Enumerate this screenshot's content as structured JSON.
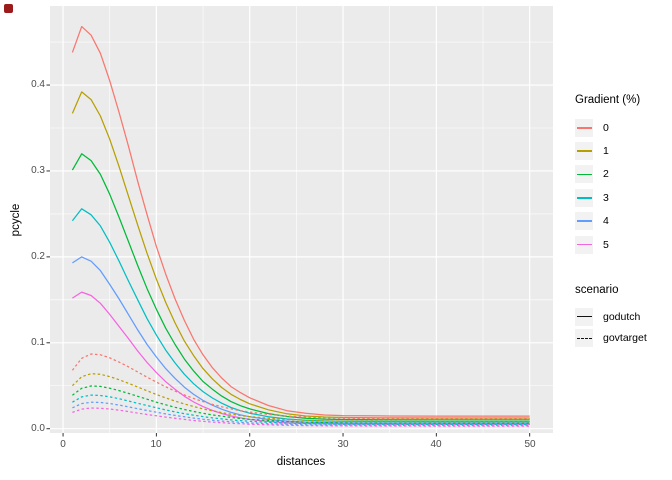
{
  "axis": {
    "x_title": "distances",
    "y_title": "pcycle",
    "x_tick_labels": [
      "0",
      "10",
      "20",
      "30",
      "40",
      "50"
    ],
    "y_tick_labels": [
      "0.0",
      "0.1",
      "0.2",
      "0.3",
      "0.4"
    ]
  },
  "legend": {
    "gradient": {
      "title": "Gradient (%)",
      "items": [
        {
          "label": "0",
          "color": "#F8766D"
        },
        {
          "label": "1",
          "color": "#B79F00"
        },
        {
          "label": "2",
          "color": "#00BA38"
        },
        {
          "label": "3",
          "color": "#00BFC4"
        },
        {
          "label": "4",
          "color": "#619CFF"
        },
        {
          "label": "5",
          "color": "#F564E2"
        }
      ]
    },
    "scenario": {
      "title": "scenario",
      "items": [
        {
          "label": "godutch",
          "linetype": "solid"
        },
        {
          "label": "govtarget",
          "linetype": "dashed"
        }
      ]
    }
  },
  "colors": {
    "panel_bg": "#EBEBEB",
    "gridline": "#FFFFFF",
    "tick_mark": "#333333",
    "tick_label": "#4D4D4D",
    "record_indicator": "#9B1B1B"
  },
  "chart_data": {
    "type": "line",
    "title": "",
    "xlabel": "distances",
    "ylabel": "pcycle",
    "xlim": [
      -1.4,
      52.5
    ],
    "ylim": [
      -0.005,
      0.492
    ],
    "x_ticks": [
      0,
      10,
      20,
      30,
      40,
      50
    ],
    "x_minor_ticks": [
      5,
      15,
      25,
      35,
      45
    ],
    "y_ticks": [
      0,
      0.1,
      0.2,
      0.3,
      0.4
    ],
    "y_minor_ticks": [
      0.05,
      0.15,
      0.25,
      0.35,
      0.45
    ],
    "legend_position": "right",
    "grid": true,
    "x": [
      1,
      2,
      3,
      4,
      5,
      6,
      7,
      8,
      9,
      10,
      11,
      12,
      13,
      14,
      15,
      16,
      17,
      18,
      19,
      20,
      22,
      24,
      26,
      28,
      30,
      35,
      40,
      45,
      50
    ],
    "series": [
      {
        "name": "godutch gradient 0",
        "scenario": "godutch",
        "gradient": "0",
        "color": "#F8766D",
        "linetype": "solid",
        "values": [
          0.438,
          0.468,
          0.458,
          0.437,
          0.405,
          0.368,
          0.329,
          0.288,
          0.249,
          0.212,
          0.18,
          0.151,
          0.126,
          0.104,
          0.086,
          0.071,
          0.059,
          0.049,
          0.042,
          0.036,
          0.027,
          0.021,
          0.018,
          0.016,
          0.0152,
          0.0148,
          0.0147,
          0.0147,
          0.0147
        ]
      },
      {
        "name": "godutch gradient 1",
        "scenario": "godutch",
        "gradient": "1",
        "color": "#B79F00",
        "linetype": "solid",
        "values": [
          0.367,
          0.392,
          0.383,
          0.364,
          0.337,
          0.305,
          0.271,
          0.237,
          0.204,
          0.174,
          0.147,
          0.123,
          0.102,
          0.085,
          0.07,
          0.058,
          0.048,
          0.04,
          0.034,
          0.029,
          0.022,
          0.0173,
          0.0148,
          0.0136,
          0.013,
          0.0126,
          0.0125,
          0.0125,
          0.0125
        ]
      },
      {
        "name": "godutch gradient 2",
        "scenario": "godutch",
        "gradient": "2",
        "color": "#00BA38",
        "linetype": "solid",
        "values": [
          0.301,
          0.32,
          0.312,
          0.296,
          0.273,
          0.246,
          0.218,
          0.19,
          0.163,
          0.139,
          0.117,
          0.098,
          0.081,
          0.067,
          0.055,
          0.046,
          0.038,
          0.0315,
          0.0268,
          0.023,
          0.0176,
          0.0142,
          0.0122,
          0.0112,
          0.0107,
          0.0104,
          0.0103,
          0.0103,
          0.0103
        ]
      },
      {
        "name": "godutch gradient 3",
        "scenario": "godutch",
        "gradient": "3",
        "color": "#00BFC4",
        "linetype": "solid",
        "values": [
          0.242,
          0.256,
          0.249,
          0.236,
          0.217,
          0.195,
          0.172,
          0.15,
          0.128,
          0.109,
          0.0915,
          0.0765,
          0.0633,
          0.0523,
          0.0432,
          0.0357,
          0.0297,
          0.0247,
          0.021,
          0.018,
          0.0139,
          0.0113,
          0.0098,
          0.009,
          0.0086,
          0.0084,
          0.0083,
          0.0083,
          0.0083
        ]
      },
      {
        "name": "godutch gradient 4",
        "scenario": "godutch",
        "gradient": "4",
        "color": "#619CFF",
        "linetype": "solid",
        "values": [
          0.193,
          0.2,
          0.195,
          0.184,
          0.168,
          0.151,
          0.133,
          0.115,
          0.098,
          0.0835,
          0.07,
          0.0585,
          0.0483,
          0.0399,
          0.033,
          0.0273,
          0.0227,
          0.019,
          0.0161,
          0.0138,
          0.0107,
          0.0088,
          0.0077,
          0.0071,
          0.0068,
          0.0066,
          0.0065,
          0.0065,
          0.0065
        ]
      },
      {
        "name": "godutch gradient 5",
        "scenario": "godutch",
        "gradient": "5",
        "color": "#F564E2",
        "linetype": "solid",
        "values": [
          0.152,
          0.159,
          0.155,
          0.146,
          0.133,
          0.119,
          0.105,
          0.0905,
          0.077,
          0.0653,
          0.0547,
          0.0457,
          0.0377,
          0.0311,
          0.0257,
          0.0213,
          0.0177,
          0.0148,
          0.0126,
          0.0108,
          0.0084,
          0.007,
          0.0062,
          0.0057,
          0.0055,
          0.0053,
          0.0052,
          0.0052,
          0.0052
        ]
      },
      {
        "name": "govtarget gradient 0",
        "scenario": "govtarget",
        "gradient": "0",
        "color": "#F8766D",
        "linetype": "dashed",
        "values": [
          0.068,
          0.082,
          0.087,
          0.086,
          0.0825,
          0.0775,
          0.072,
          0.066,
          0.06,
          0.0542,
          0.0488,
          0.0438,
          0.0393,
          0.0352,
          0.0315,
          0.0283,
          0.0255,
          0.0231,
          0.021,
          0.0193,
          0.0166,
          0.0147,
          0.0135,
          0.0127,
          0.0122,
          0.0116,
          0.0114,
          0.0114,
          0.0114
        ]
      },
      {
        "name": "govtarget gradient 1",
        "scenario": "govtarget",
        "gradient": "1",
        "color": "#B79F00",
        "linetype": "dashed",
        "values": [
          0.05,
          0.0605,
          0.064,
          0.0633,
          0.0607,
          0.057,
          0.0529,
          0.0485,
          0.0441,
          0.0398,
          0.0358,
          0.0321,
          0.0288,
          0.0258,
          0.0231,
          0.0207,
          0.0187,
          0.0169,
          0.0154,
          0.0141,
          0.0121,
          0.0107,
          0.0098,
          0.0092,
          0.0089,
          0.0085,
          0.0083,
          0.0083,
          0.0083
        ]
      },
      {
        "name": "govtarget gradient 2",
        "scenario": "govtarget",
        "gradient": "2",
        "color": "#00BA38",
        "linetype": "dashed",
        "values": [
          0.039,
          0.047,
          0.0497,
          0.0492,
          0.0472,
          0.0443,
          0.0411,
          0.0377,
          0.0343,
          0.0309,
          0.0278,
          0.0249,
          0.0223,
          0.02,
          0.0179,
          0.0161,
          0.0145,
          0.0131,
          0.0119,
          0.0109,
          0.0094,
          0.0083,
          0.0076,
          0.0071,
          0.0068,
          0.0065,
          0.0064,
          0.0064,
          0.0064
        ]
      },
      {
        "name": "govtarget gradient 3",
        "scenario": "govtarget",
        "gradient": "3",
        "color": "#00BFC4",
        "linetype": "dashed",
        "values": [
          0.0308,
          0.037,
          0.0391,
          0.0387,
          0.0371,
          0.0349,
          0.0323,
          0.0296,
          0.027,
          0.0243,
          0.0219,
          0.0196,
          0.0175,
          0.0157,
          0.0141,
          0.0126,
          0.0114,
          0.0103,
          0.0094,
          0.0086,
          0.0074,
          0.0065,
          0.0059,
          0.0056,
          0.0053,
          0.0051,
          0.005,
          0.005,
          0.005
        ]
      },
      {
        "name": "govtarget gradient 4",
        "scenario": "govtarget",
        "gradient": "4",
        "color": "#619CFF",
        "linetype": "dashed",
        "values": [
          0.0243,
          0.0292,
          0.0308,
          0.0305,
          0.0293,
          0.0275,
          0.0255,
          0.0233,
          0.0212,
          0.0192,
          0.0172,
          0.0155,
          0.0138,
          0.0123,
          0.0111,
          0.0099,
          0.0089,
          0.0081,
          0.0074,
          0.0068,
          0.0058,
          0.0051,
          0.0047,
          0.0044,
          0.0042,
          0.004,
          0.0039,
          0.0039,
          0.0039
        ]
      },
      {
        "name": "govtarget gradient 5",
        "scenario": "govtarget",
        "gradient": "5",
        "color": "#F564E2",
        "linetype": "dashed",
        "values": [
          0.019,
          0.0228,
          0.0241,
          0.0238,
          0.0229,
          0.0215,
          0.0199,
          0.0182,
          0.0165,
          0.015,
          0.0135,
          0.0121,
          0.0108,
          0.0096,
          0.0086,
          0.0077,
          0.007,
          0.0063,
          0.0058,
          0.0053,
          0.0045,
          0.004,
          0.0036,
          0.0034,
          0.0033,
          0.0031,
          0.003,
          0.003,
          0.003
        ]
      }
    ]
  }
}
